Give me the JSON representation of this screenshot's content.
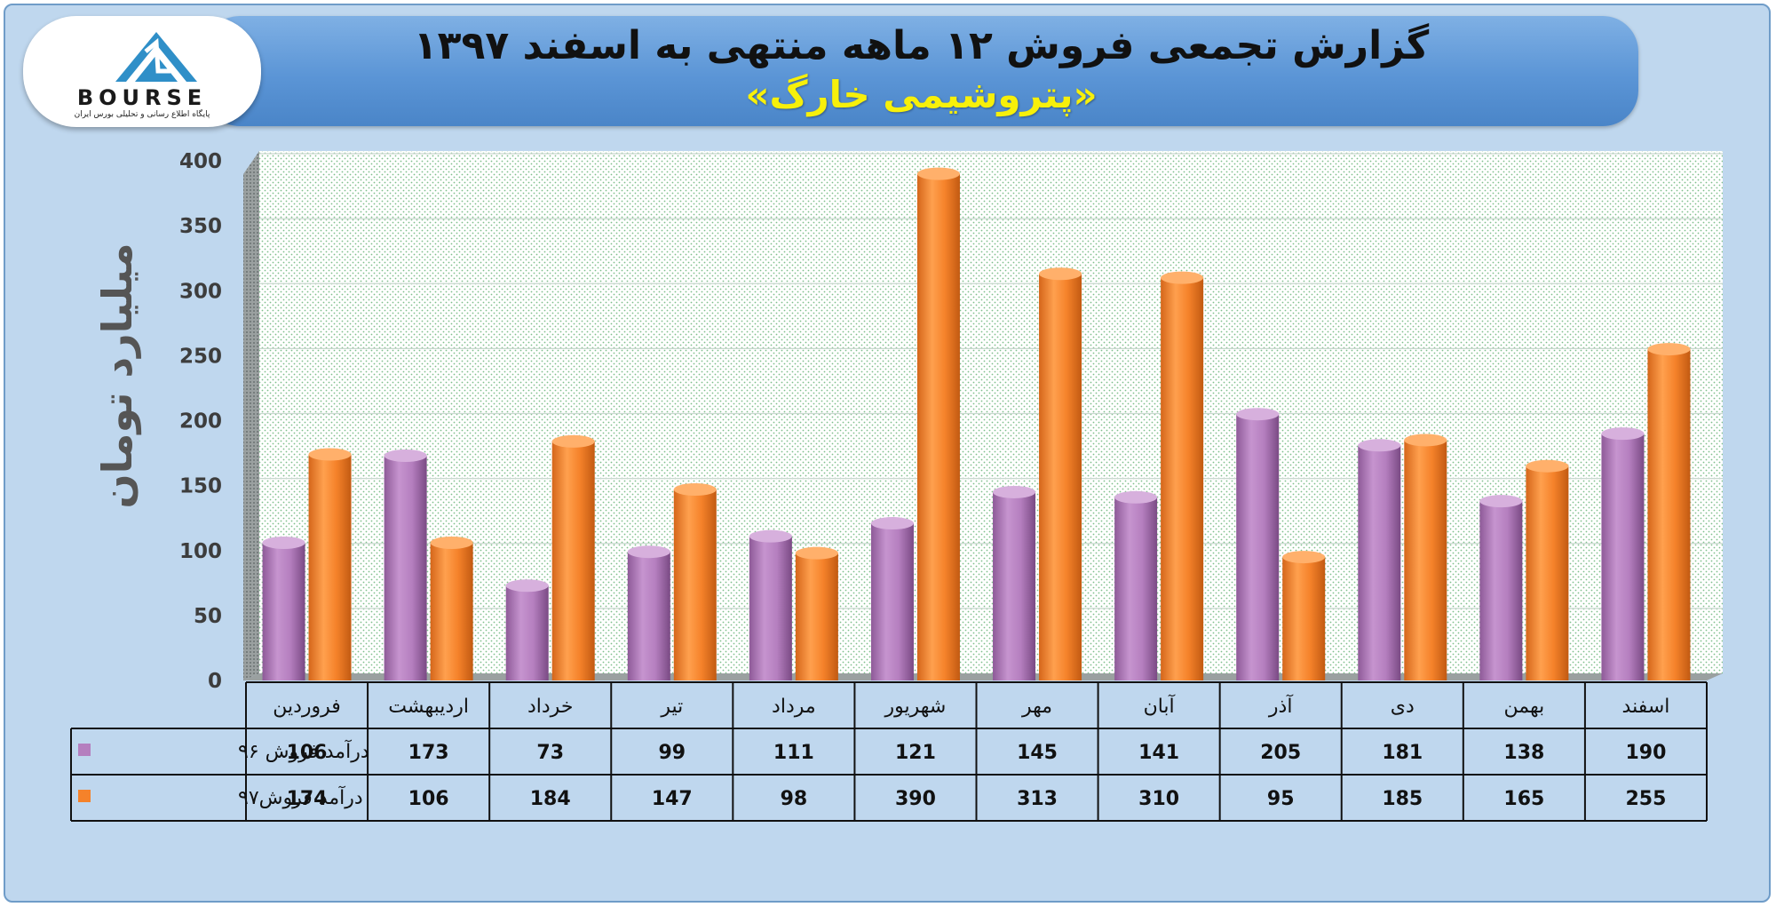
{
  "header": {
    "title": "گزارش تجمعی فروش ۱۲ ماهه منتهی به اسفند ۱۳۹۷",
    "subtitle": "«پتروشیمی خارگ»"
  },
  "logo": {
    "text": "BOURSE",
    "subtext": "پایگاه اطلاع رسانی و تحلیلی بورس ایران"
  },
  "colors": {
    "series_96": "#b57fbf",
    "series_97": "#f5822a",
    "background": "#bfd7ee",
    "banner": "#5b95d6",
    "title_accent": "#f7f00a"
  },
  "chart_data": {
    "type": "bar",
    "title": "گزارش تجمعی فروش ۱۲ ماهه منتهی به اسفند ۱۳۹۷",
    "subtitle": "«پتروشیمی خارگ»",
    "ylabel": "میلیارد تومان",
    "xlabel": "",
    "ylim": [
      0,
      400
    ],
    "yticks": [
      0,
      50,
      100,
      150,
      200,
      250,
      300,
      350,
      400
    ],
    "categories": [
      "فروردین",
      "اردیبهشت",
      "خرداد",
      "تیر",
      "مرداد",
      "شهریور",
      "مهر",
      "آبان",
      "آذر",
      "دی",
      "بهمن",
      "اسفند"
    ],
    "series": [
      {
        "name": "درآمد فروش ۹۶",
        "values": [
          106,
          173,
          73,
          99,
          111,
          121,
          145,
          141,
          205,
          181,
          138,
          190
        ]
      },
      {
        "name": "درآمد فروش۹۷",
        "values": [
          174,
          106,
          184,
          147,
          98,
          390,
          313,
          310,
          95,
          185,
          165,
          255
        ]
      }
    ],
    "grid": true,
    "legend": "data-table-bottom-left"
  }
}
